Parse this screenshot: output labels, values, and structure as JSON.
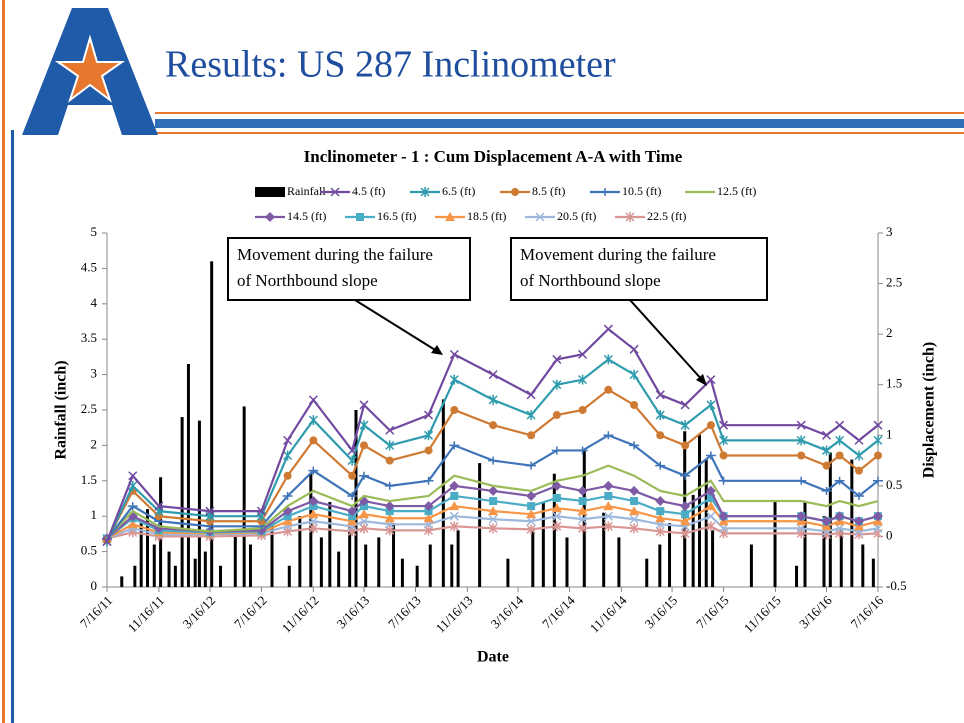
{
  "slide_title": "Results: US 287 Inclinometer",
  "chart_data": {
    "type": "line",
    "title": "Inclinometer - 1 : Cum Displacement A-A with Time",
    "x_label": "Date",
    "y_label": "Rainfall (inch)",
    "y2_label": "Displacement (inch)",
    "annotations": [
      {
        "lines": [
          "Movement during the failure",
          "of Northbound slope"
        ]
      },
      {
        "lines": [
          "Movement during the failure",
          "of Northbound slope"
        ]
      }
    ],
    "xlim": [
      "2011-07-16",
      "2016-07-16"
    ],
    "xticks": [
      {
        "value": "2011-07-16",
        "label": "7/16/11"
      },
      {
        "value": "2011-11-16",
        "label": "11/16/11"
      },
      {
        "value": "2012-03-16",
        "label": "3/16/12"
      },
      {
        "value": "2012-07-16",
        "label": "7/16/12"
      },
      {
        "value": "2012-11-16",
        "label": "11/16/12"
      },
      {
        "value": "2013-03-16",
        "label": "3/16/13"
      },
      {
        "value": "2013-07-16",
        "label": "7/16/13"
      },
      {
        "value": "2013-11-16",
        "label": "11/16/13"
      },
      {
        "value": "2014-03-16",
        "label": "3/16/14"
      },
      {
        "value": "2014-07-16",
        "label": "7/16/14"
      },
      {
        "value": "2014-11-16",
        "label": "11/16/14"
      },
      {
        "value": "2015-03-16",
        "label": "3/16/15"
      },
      {
        "value": "2015-07-16",
        "label": "7/16/15"
      },
      {
        "value": "2015-11-16",
        "label": "11/16/15"
      },
      {
        "value": "2016-03-16",
        "label": "3/16/16"
      },
      {
        "value": "2016-07-16",
        "label": "7/16/16"
      }
    ],
    "ylim": [
      0,
      5
    ],
    "yticks": [
      0,
      0.5,
      1,
      1.5,
      2,
      2.5,
      3,
      3.5,
      4,
      4.5,
      5
    ],
    "y2lim": [
      -0.5,
      3
    ],
    "y2ticks": [
      -0.5,
      0,
      0.5,
      1,
      1.5,
      2,
      2.5,
      3
    ],
    "x": [
      "2011-07-16",
      "2011-09-15",
      "2011-11-16",
      "2012-03-16",
      "2012-07-16",
      "2012-09-16",
      "2012-11-16",
      "2013-02-16",
      "2013-03-16",
      "2013-05-16",
      "2013-08-16",
      "2013-10-16",
      "2014-01-16",
      "2014-04-16",
      "2014-06-16",
      "2014-08-16",
      "2014-10-16",
      "2014-12-16",
      "2015-02-16",
      "2015-04-16",
      "2015-06-16",
      "2015-07-16",
      "2016-01-16",
      "2016-03-16",
      "2016-04-16",
      "2016-06-01",
      "2016-07-16"
    ],
    "series": [
      {
        "name": "Rainfall",
        "type": "bar",
        "color": "#000000",
        "x": [
          "2011-08-20",
          "2011-09-20",
          "2011-10-05",
          "2011-10-20",
          "2011-11-05",
          "2011-11-20",
          "2011-12-10",
          "2011-12-25",
          "2012-01-10",
          "2012-01-25",
          "2012-02-10",
          "2012-02-20",
          "2012-03-05",
          "2012-03-20",
          "2012-04-10",
          "2012-05-15",
          "2012-06-05",
          "2012-06-20",
          "2012-08-10",
          "2012-09-20",
          "2012-10-15",
          "2012-11-10",
          "2012-12-05",
          "2012-12-25",
          "2013-01-15",
          "2013-02-10",
          "2013-02-25",
          "2013-03-20",
          "2013-04-20",
          "2013-05-25",
          "2013-06-15",
          "2013-07-20",
          "2013-08-20",
          "2013-09-20",
          "2013-10-10",
          "2013-10-25",
          "2013-12-15",
          "2014-02-20",
          "2014-04-20",
          "2014-05-15",
          "2014-06-10",
          "2014-07-10",
          "2014-08-20",
          "2014-10-05",
          "2014-11-10",
          "2015-01-15",
          "2015-02-15",
          "2015-03-10",
          "2015-04-15",
          "2015-05-05",
          "2015-05-20",
          "2015-06-05",
          "2015-06-20",
          "2015-09-20",
          "2015-11-15",
          "2016-01-05",
          "2016-01-25",
          "2016-03-10",
          "2016-03-25",
          "2016-04-20",
          "2016-05-15",
          "2016-06-10",
          "2016-07-05"
        ],
        "values": [
          0.15,
          0.3,
          0.9,
          1.1,
          0.6,
          1.55,
          0.5,
          0.3,
          2.4,
          3.15,
          0.4,
          2.35,
          0.5,
          4.6,
          0.3,
          0.8,
          2.55,
          0.6,
          0.9,
          0.3,
          1.0,
          1.6,
          0.7,
          1.2,
          0.5,
          0.9,
          2.5,
          0.6,
          0.7,
          0.9,
          0.4,
          0.3,
          0.6,
          2.65,
          0.6,
          0.8,
          1.75,
          0.4,
          0.8,
          1.2,
          1.6,
          0.7,
          1.95,
          1.05,
          0.7,
          0.4,
          0.6,
          0.9,
          2.2,
          1.3,
          2.15,
          1.8,
          0.8,
          0.6,
          1.2,
          0.3,
          1.2,
          1.0,
          1.9,
          0.8,
          1.8,
          0.6,
          0.4
        ]
      },
      {
        "name": "4.5 (ft)",
        "axis": "y2",
        "marker": "x",
        "color": "#7149a0",
        "values": [
          -0.05,
          0.6,
          0.3,
          0.25,
          0.25,
          0.95,
          1.35,
          0.85,
          1.3,
          1.05,
          1.2,
          1.8,
          1.6,
          1.4,
          1.75,
          1.8,
          2.05,
          1.85,
          1.4,
          1.3,
          1.55,
          1.1,
          1.1,
          1.0,
          1.1,
          0.95,
          1.1
        ]
      },
      {
        "name": "6.5 (ft)",
        "axis": "y2",
        "marker": "asterisk",
        "color": "#2f9cae",
        "values": [
          -0.05,
          0.5,
          0.25,
          0.2,
          0.2,
          0.8,
          1.15,
          0.75,
          1.1,
          0.9,
          1.0,
          1.55,
          1.35,
          1.2,
          1.5,
          1.55,
          1.75,
          1.6,
          1.2,
          1.1,
          1.3,
          0.95,
          0.95,
          0.85,
          0.95,
          0.8,
          0.95
        ]
      },
      {
        "name": "8.5 (ft)",
        "axis": "y2",
        "marker": "circle",
        "color": "#cf7a33",
        "values": [
          -0.04,
          0.45,
          0.2,
          0.15,
          0.15,
          0.6,
          0.95,
          0.6,
          0.9,
          0.75,
          0.85,
          1.25,
          1.1,
          1.0,
          1.2,
          1.25,
          1.45,
          1.3,
          1.0,
          0.9,
          1.1,
          0.8,
          0.8,
          0.7,
          0.8,
          0.65,
          0.8
        ]
      },
      {
        "name": "10.5 (ft)",
        "axis": "y2",
        "marker": "plus",
        "color": "#3f74b8",
        "values": [
          -0.03,
          0.3,
          0.15,
          0.1,
          0.1,
          0.4,
          0.65,
          0.4,
          0.6,
          0.5,
          0.55,
          0.9,
          0.75,
          0.7,
          0.85,
          0.85,
          1.0,
          0.9,
          0.7,
          0.6,
          0.8,
          0.55,
          0.55,
          0.45,
          0.55,
          0.4,
          0.55
        ]
      },
      {
        "name": "12.5 (ft)",
        "axis": "y2",
        "marker": "none",
        "color": "#9bbb59",
        "values": [
          -0.02,
          0.25,
          0.1,
          0.05,
          0.08,
          0.3,
          0.45,
          0.3,
          0.4,
          0.35,
          0.4,
          0.6,
          0.5,
          0.45,
          0.55,
          0.6,
          0.7,
          0.6,
          0.45,
          0.4,
          0.55,
          0.35,
          0.35,
          0.3,
          0.35,
          0.3,
          0.35
        ]
      },
      {
        "name": "14.5 (ft)",
        "axis": "y2",
        "marker": "diamond",
        "color": "#7e5aa5",
        "values": [
          -0.02,
          0.2,
          0.08,
          0.05,
          0.06,
          0.25,
          0.35,
          0.25,
          0.35,
          0.3,
          0.3,
          0.5,
          0.45,
          0.4,
          0.5,
          0.45,
          0.5,
          0.45,
          0.35,
          0.3,
          0.45,
          0.2,
          0.2,
          0.15,
          0.2,
          0.15,
          0.2
        ]
      },
      {
        "name": "16.5 (ft)",
        "axis": "y2",
        "marker": "square",
        "color": "#4bacc6",
        "values": [
          -0.02,
          0.18,
          0.06,
          0.04,
          0.05,
          0.2,
          0.3,
          0.2,
          0.3,
          0.25,
          0.25,
          0.4,
          0.35,
          0.3,
          0.38,
          0.35,
          0.4,
          0.35,
          0.25,
          0.22,
          0.38,
          0.2,
          0.2,
          0.15,
          0.2,
          0.15,
          0.2
        ]
      },
      {
        "name": "18.5 (ft)",
        "axis": "y2",
        "marker": "triangle",
        "color": "#f79646",
        "values": [
          -0.02,
          0.12,
          0.04,
          0.03,
          0.04,
          0.15,
          0.22,
          0.15,
          0.22,
          0.18,
          0.18,
          0.3,
          0.25,
          0.22,
          0.28,
          0.25,
          0.3,
          0.25,
          0.18,
          0.15,
          0.3,
          0.15,
          0.15,
          0.1,
          0.15,
          0.1,
          0.15
        ]
      },
      {
        "name": "20.5 (ft)",
        "axis": "y2",
        "marker": "x",
        "color": "#9db8dc",
        "values": [
          -0.02,
          0.08,
          0.02,
          0.02,
          0.03,
          0.1,
          0.15,
          0.1,
          0.15,
          0.12,
          0.12,
          0.2,
          0.17,
          0.15,
          0.2,
          0.17,
          0.2,
          0.17,
          0.12,
          0.1,
          0.2,
          0.08,
          0.08,
          0.05,
          0.08,
          0.05,
          0.08
        ]
      },
      {
        "name": "22.5 (ft)",
        "axis": "y2",
        "marker": "asterisk",
        "color": "#d99694",
        "values": [
          -0.02,
          0.04,
          0.0,
          0.0,
          0.01,
          0.05,
          0.08,
          0.05,
          0.08,
          0.06,
          0.06,
          0.1,
          0.08,
          0.07,
          0.1,
          0.08,
          0.1,
          0.08,
          0.05,
          0.03,
          0.1,
          0.03,
          0.03,
          0.02,
          0.03,
          0.02,
          0.03
        ]
      }
    ]
  }
}
